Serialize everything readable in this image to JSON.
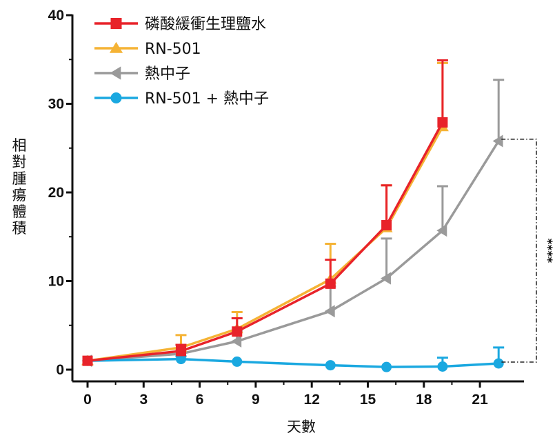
{
  "chart_data": {
    "type": "line",
    "title": "",
    "xlabel": "天數",
    "ylabel": "相對腫瘍體積",
    "xlim": [
      0,
      22.5
    ],
    "ylim": [
      0,
      40
    ],
    "xticks": [
      0,
      3,
      6,
      9,
      12,
      15,
      18,
      21
    ],
    "yticks": [
      0,
      10,
      20,
      30,
      40
    ],
    "grid": false,
    "legend_position": "top-left",
    "series": [
      {
        "name": "磷酸緩衝生理鹽水",
        "color": "#e8232a",
        "marker": "square",
        "x": [
          0,
          5,
          8,
          13,
          16,
          19
        ],
        "y": [
          1.0,
          2.1,
          4.3,
          9.7,
          16.3,
          27.9
        ],
        "err": [
          0.2,
          0.7,
          1.5,
          2.7,
          4.5,
          7.0
        ]
      },
      {
        "name": "RN-501",
        "color": "#f5b335",
        "marker": "triangle-up",
        "x": [
          0,
          5,
          8,
          13,
          16,
          19
        ],
        "y": [
          1.0,
          2.5,
          4.6,
          10.2,
          16.0,
          27.4
        ],
        "err": [
          0.2,
          1.4,
          1.9,
          4.0,
          4.8,
          7.2
        ]
      },
      {
        "name": "熱中子",
        "color": "#9a9a9a",
        "marker": "triangle-left",
        "x": [
          0,
          5,
          8,
          13,
          16,
          19,
          22
        ],
        "y": [
          1.0,
          1.8,
          3.2,
          6.6,
          10.3,
          15.7,
          25.8
        ],
        "err": [
          0.2,
          0.5,
          1.2,
          2.8,
          4.5,
          5.0,
          6.9
        ]
      },
      {
        "name": "RN-501 + 熱中子",
        "color": "#1aa8e0",
        "marker": "circle",
        "x": [
          0,
          5,
          8,
          13,
          16,
          19,
          22
        ],
        "y": [
          1.0,
          1.2,
          0.9,
          0.5,
          0.3,
          0.35,
          0.7
        ],
        "err": [
          0.2,
          0.3,
          0.2,
          0.1,
          0.1,
          1.0,
          1.8
        ]
      }
    ],
    "annotations": [
      {
        "text": "****",
        "type": "significance-bracket",
        "x": 22,
        "from": 0.7,
        "to": 26.0
      }
    ]
  }
}
